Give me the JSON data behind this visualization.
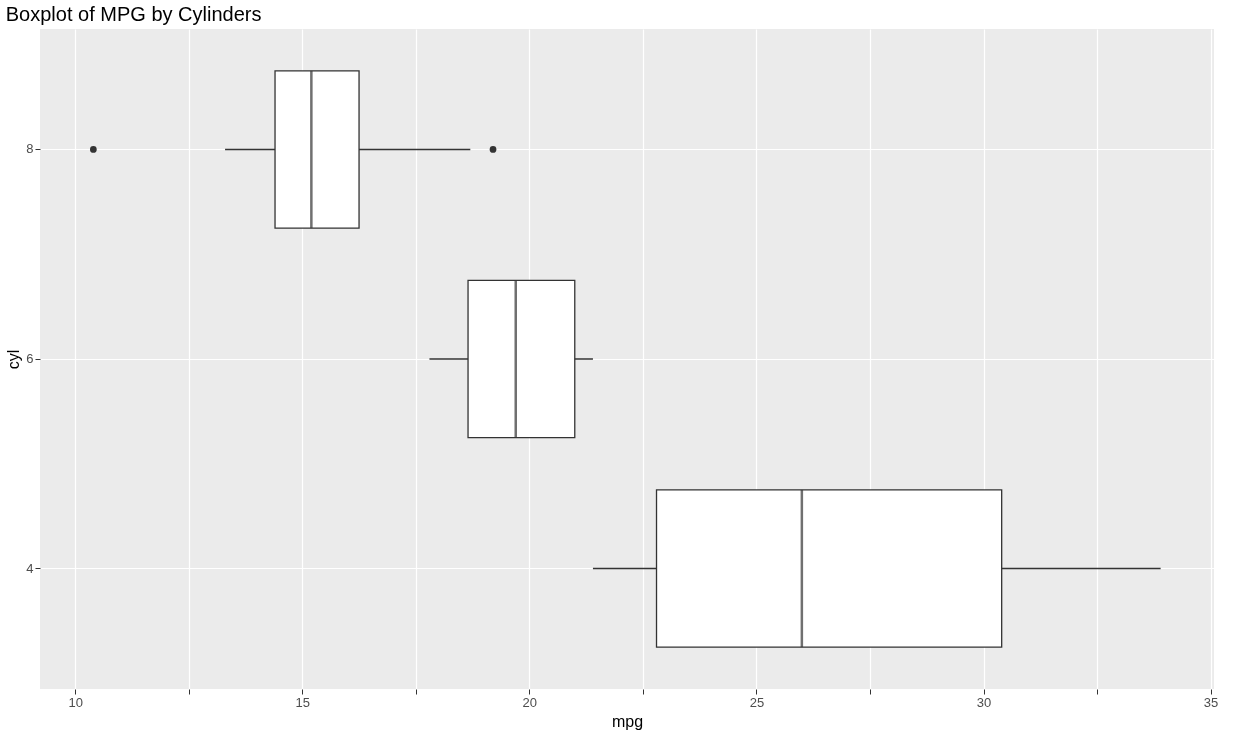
{
  "chart_data": {
    "type": "box",
    "title": "Boxplot of MPG by Cylinders",
    "xlabel": "mpg",
    "ylabel": "cyl",
    "orientation": "horizontal",
    "categories": [
      "8",
      "6",
      "4"
    ],
    "boxes": [
      {
        "low": 13.3,
        "q1": 14.4,
        "median": 15.2,
        "q3": 16.25,
        "high": 18.7,
        "outliers": [
          10.4,
          19.2
        ]
      },
      {
        "low": 17.8,
        "q1": 18.65,
        "median": 19.7,
        "q3": 21.0,
        "high": 21.4
      },
      {
        "low": 21.4,
        "q1": 22.8,
        "median": 26.0,
        "q3": 30.4,
        "high": 33.9
      }
    ],
    "xlim": [
      9.225,
      35.075
    ],
    "xticks": [
      10,
      {
        "value": 12.5,
        "label": null
      },
      15,
      {
        "value": 17.5,
        "label": null
      },
      20,
      {
        "value": 22.5,
        "label": null
      },
      25,
      {
        "value": 27.5,
        "label": null
      },
      30,
      {
        "value": 32.5,
        "label": null
      },
      35
    ],
    "grid": true
  }
}
